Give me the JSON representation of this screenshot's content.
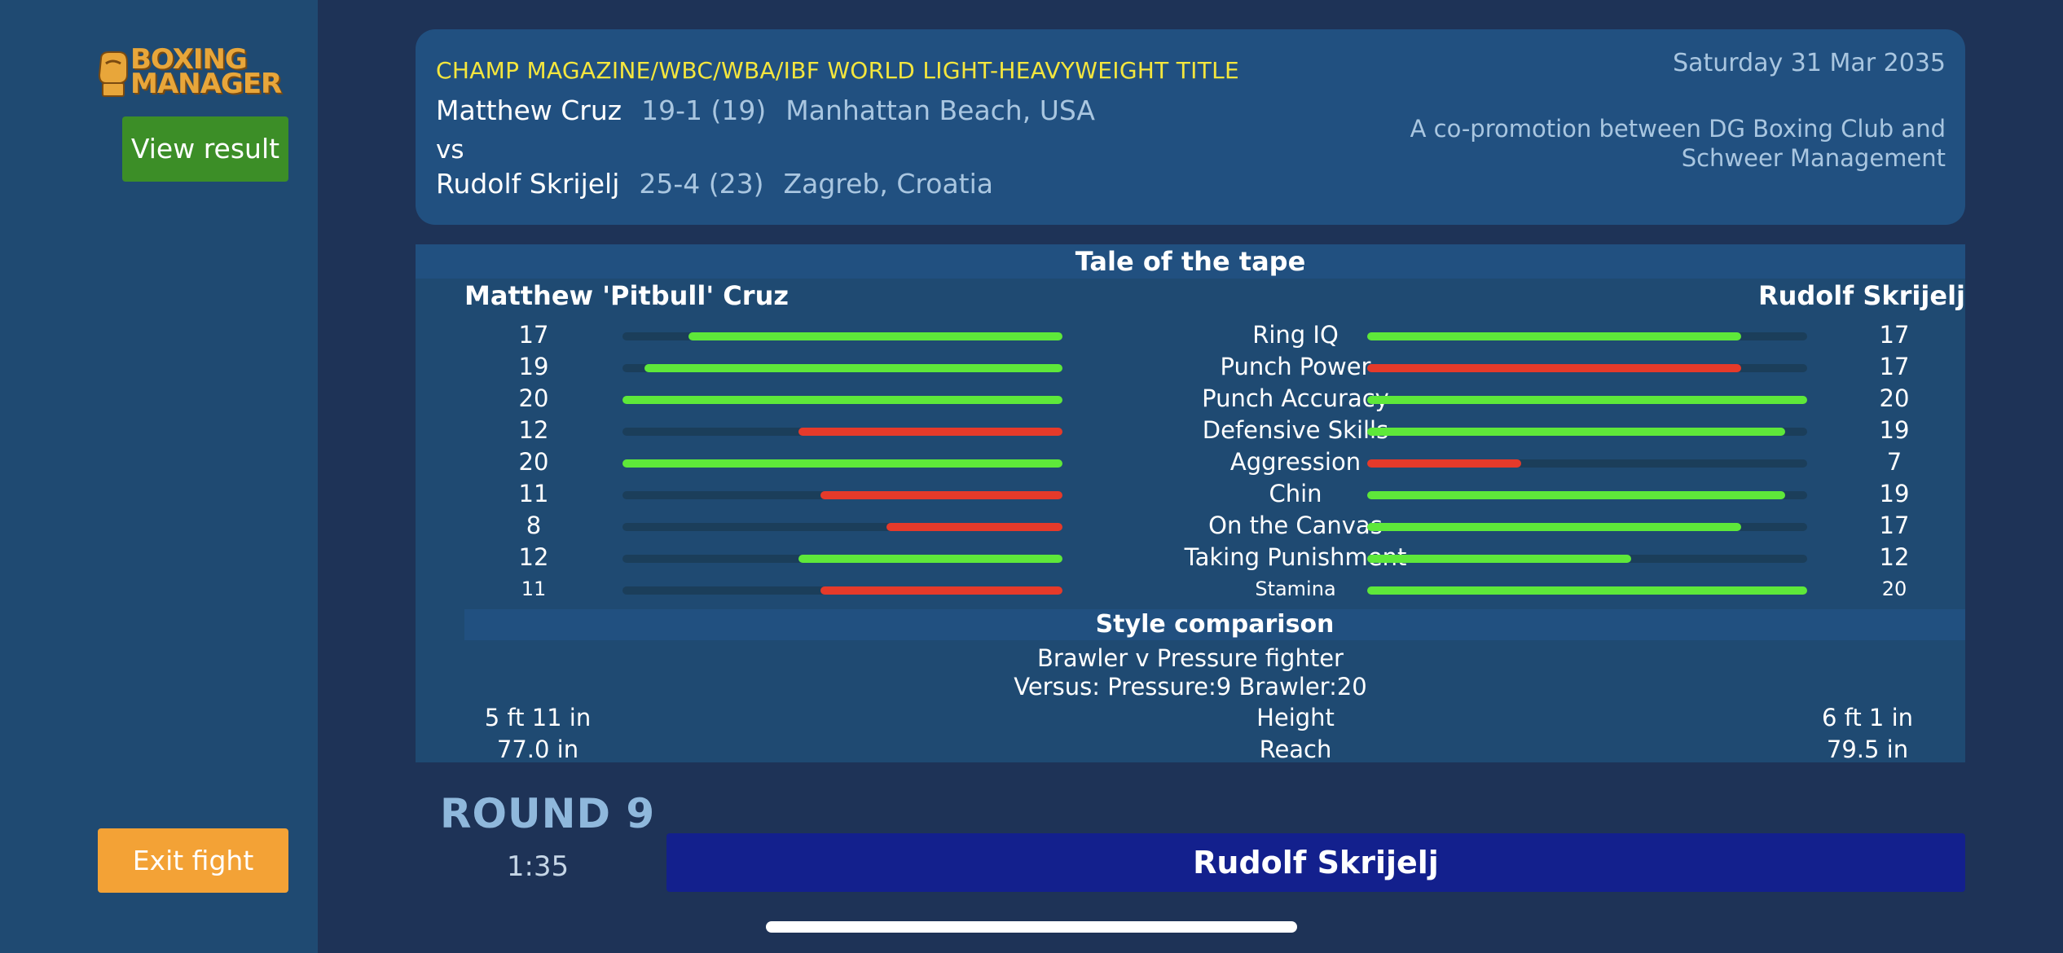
{
  "app": {
    "logo_line1": "BOXING",
    "logo_line2": "MANAGER",
    "view_result": "View result",
    "exit_fight": "Exit fight"
  },
  "fight": {
    "title": "CHAMP MAGAZINE/WBC/WBA/IBF WORLD LIGHT-HEAVYWEIGHT TITLE",
    "date": "Saturday 31 Mar 2035",
    "promotion": "A co-promotion between DG Boxing Club and Schweer Management",
    "vs": "vs",
    "fighter_a": {
      "name": "Matthew Cruz",
      "record": "19-1 (19)",
      "location": "Manhattan Beach, USA"
    },
    "fighter_b": {
      "name": "Rudolf Skrijelj",
      "record": "25-4 (23)",
      "location": "Zagreb, Croatia"
    }
  },
  "tape": {
    "heading": "Tale of the tape",
    "left_name": "Matthew 'Pitbull' Cruz",
    "right_name": "Rudolf Skrijelj",
    "max": 20,
    "colors": {
      "better_or_equal": "#5ee83a",
      "worse": "#e53a2a"
    },
    "stats": [
      {
        "label": "Ring IQ",
        "left": "17",
        "right": "17"
      },
      {
        "label": "Punch Power",
        "left": "19",
        "right": "17"
      },
      {
        "label": "Punch Accuracy",
        "left": "20",
        "right": "20"
      },
      {
        "label": "Defensive Skills",
        "left": "12",
        "right": "19"
      },
      {
        "label": "Aggression",
        "left": "20",
        "right": "7"
      },
      {
        "label": "Chin",
        "left": "11",
        "right": "19"
      },
      {
        "label": "On the Canvas",
        "left": "8",
        "right": "17"
      },
      {
        "label": "Taking Punishment",
        "left": "12",
        "right": "12"
      },
      {
        "label": "Stamina",
        "left": "11",
        "right": "20"
      }
    ]
  },
  "style": {
    "heading": "Style comparison",
    "matchup": "Brawler v Pressure fighter",
    "versus": "Versus: Pressure:9   Brawler:20",
    "height": {
      "label": "Height",
      "left": "5 ft 11 in",
      "right": "6 ft 1 in"
    },
    "reach": {
      "label": "Reach",
      "left": "77.0 in",
      "right": "79.5 in"
    }
  },
  "round": {
    "label": "ROUND 9",
    "clock": "1:35",
    "active_fighter": "Rudolf Skrijelj"
  }
}
